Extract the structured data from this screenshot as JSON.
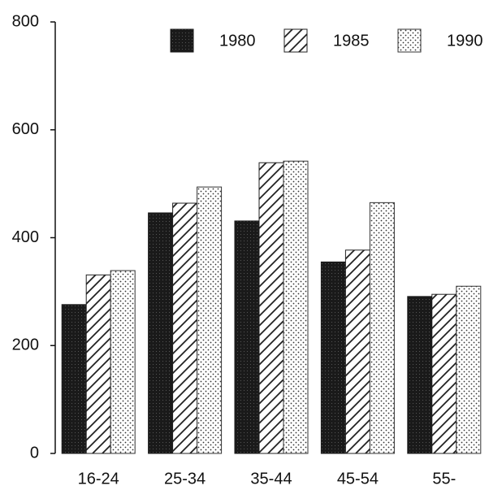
{
  "chart_data": {
    "type": "bar",
    "categories": [
      "16-24",
      "25-34",
      "35-44",
      "45-54",
      "55-"
    ],
    "series": [
      {
        "name": "1980",
        "color": "#1a1a1a",
        "values": [
          276,
          446,
          431,
          355,
          291
        ]
      },
      {
        "name": "1985",
        "color": "#222222",
        "values": [
          331,
          464,
          539,
          377,
          295
        ]
      },
      {
        "name": "1990",
        "color": "#333333",
        "values": [
          339,
          494,
          542,
          465,
          310
        ]
      }
    ],
    "ylim": [
      0,
      800
    ],
    "yticks": [
      0,
      200,
      400,
      600,
      800
    ],
    "grid": false,
    "legend": "top-right"
  }
}
